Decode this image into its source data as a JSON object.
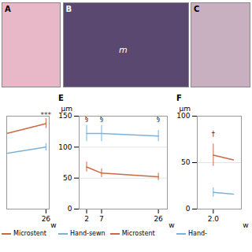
{
  "chart_data": [
    {
      "type": "image",
      "title": "A",
      "color": "#e8b8c8"
    },
    {
      "type": "image",
      "title": "B",
      "color": "#5a4870",
      "annotations": [
        {
          "text": "m"
        }
      ]
    },
    {
      "type": "image",
      "title": "C",
      "color": "#c8b0c0"
    },
    {
      "type": "line",
      "xlabel": "w",
      "x": [
        2,
        26
      ],
      "xlim": [
        2,
        28
      ],
      "xticks": [
        26
      ],
      "ylim": [
        0,
        150
      ],
      "yticks": [],
      "tick_labels": "x",
      "series": [
        {
          "name": "Microstent",
          "color": "#c96a45",
          "values": [
            122,
            138
          ],
          "yerr": [
            null,
            8
          ]
        },
        {
          "color": "#7ab3d9",
          "values": [
            90,
            100
          ],
          "yerr": [
            null,
            6
          ]
        }
      ],
      "annotations": [
        {
          "text": "***",
          "x": 26,
          "y": 148
        }
      ],
      "legend": "bottom"
    },
    {
      "type": "line",
      "title": "E",
      "ylabel": "μm",
      "xlabel": "w",
      "x": [
        2,
        7,
        26
      ],
      "xlim": [
        -0.5,
        29
      ],
      "xticks": [
        2,
        7,
        26
      ],
      "ylim": [
        0,
        150
      ],
      "yticks": [
        0,
        50,
        100,
        150
      ],
      "grid": true,
      "series": [
        {
          "name": "Hand-sewn",
          "color": "#7ab3d9",
          "values": [
            122,
            122,
            118
          ],
          "yerr": [
            13,
            13,
            9
          ]
        },
        {
          "name": "Microstent",
          "color": "#c96a45",
          "values": [
            68,
            58,
            52
          ],
          "yerr": [
            8,
            7,
            6
          ]
        }
      ],
      "annotations": [
        {
          "text": "§",
          "x": 2,
          "y": 142
        },
        {
          "text": "§",
          "x": 7,
          "y": 142
        },
        {
          "text": "§",
          "x": 26,
          "y": 142
        }
      ],
      "legend": "bottom"
    },
    {
      "type": "line",
      "title": "F",
      "ylabel": "μm",
      "xlabel": "w",
      "x": [
        2,
        2.5
      ],
      "xlim": [
        1.6,
        2.7
      ],
      "xticks": [
        2
      ],
      "ylim": [
        0,
        100
      ],
      "yticks": [
        0,
        50,
        100
      ],
      "grid": true,
      "series": [
        {
          "color": "#c96a45",
          "values": [
            58,
            53
          ],
          "yerr": [
            12,
            null
          ]
        },
        {
          "name": "Hand-",
          "color": "#7ab3d9",
          "values": [
            18,
            16
          ],
          "yerr": [
            5,
            null
          ]
        }
      ],
      "annotations": [
        {
          "text": "†",
          "x": 2,
          "y": 78
        }
      ],
      "legend": "bottom"
    }
  ]
}
